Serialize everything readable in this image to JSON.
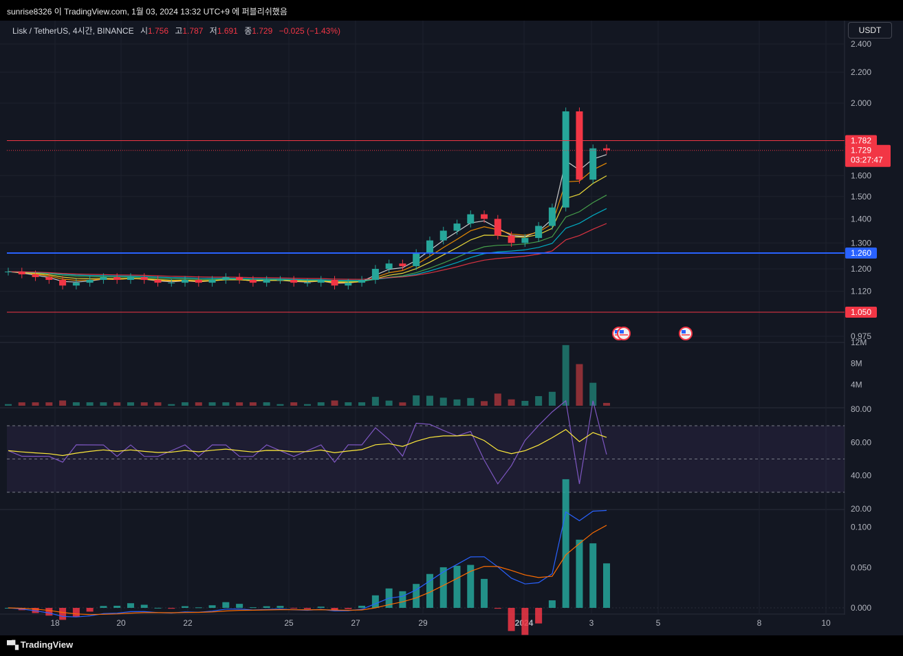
{
  "topbar": {
    "text": "sunrise8326 이 TradingView.com, 1월 03, 2024 13:32 UTC+9 에 퍼블리쉬했음"
  },
  "legend": {
    "symbol": "Lisk / TetherUS, 4시간, BINANCE",
    "open_label": "시",
    "open": "1.756",
    "high_label": "고",
    "high": "1.787",
    "low_label": "저",
    "low": "1.691",
    "close_label": "종",
    "close": "1.729",
    "change": "−0.025 (−1.43%)"
  },
  "currency_button": "USDT",
  "footer": {
    "brand": "TradingView"
  },
  "colors": {
    "up": "#26a69a",
    "down": "#f23645",
    "bg": "#131722",
    "support": "#2962ff"
  },
  "chart_data": [
    {
      "type": "line",
      "panel": "price",
      "x_ticks": [
        "18",
        "20",
        "22",
        "25",
        "27",
        "29",
        "2024",
        "3",
        "5",
        "8",
        "10"
      ],
      "y_ticks": [
        "2.400",
        "2.200",
        "2.000",
        "1.600",
        "1.500",
        "1.400",
        "1.300",
        "1.200",
        "1.120",
        "0.975"
      ],
      "ylim": [
        0.975,
        2.4
      ],
      "y_scale": "log",
      "series": [
        {
          "values": [
            1.19,
            1.18,
            1.17,
            1.16,
            1.14,
            1.15,
            1.16,
            1.17,
            1.16,
            1.17,
            1.16,
            1.15,
            1.15,
            1.16,
            1.15,
            1.16,
            1.17,
            1.16,
            1.15,
            1.16,
            1.16,
            1.15,
            1.15,
            1.16,
            1.14,
            1.15,
            1.16,
            1.2,
            1.22,
            1.21,
            1.26,
            1.31,
            1.35,
            1.38,
            1.42,
            1.4,
            1.33,
            1.3,
            1.32,
            1.37,
            1.45,
            1.95,
            1.58,
            1.74,
            1.73
          ]
        }
      ],
      "horizontal_lines": [
        {
          "value": 1.782,
          "label": "1.782",
          "color": "#f23645"
        },
        {
          "value": 1.26,
          "label": "1.260",
          "color": "#2962ff"
        },
        {
          "value": 1.05,
          "label": "1.050",
          "color": "#f23645"
        }
      ],
      "last_price": {
        "value": 1.729,
        "label": "1.729",
        "countdown": "03:27:47"
      }
    },
    {
      "type": "bar",
      "panel": "volume",
      "y_ticks": [
        "12M",
        "8M",
        "4M"
      ],
      "ylim": [
        0,
        12
      ]
    },
    {
      "type": "line",
      "panel": "rsi",
      "y_ticks": [
        "80.00",
        "60.00",
        "40.00",
        "20.00"
      ],
      "ylim": [
        20,
        80
      ],
      "band": [
        30,
        70
      ]
    },
    {
      "type": "bar",
      "panel": "macd",
      "y_ticks": [
        "0.100",
        "0.050",
        "0.000"
      ],
      "ylim": [
        0,
        0.12
      ]
    }
  ]
}
